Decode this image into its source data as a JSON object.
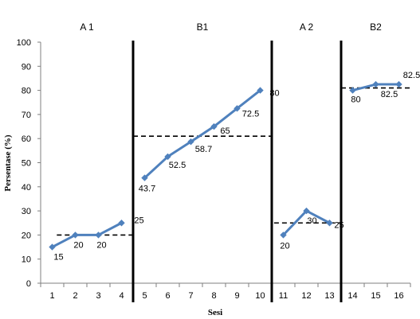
{
  "chart_data": {
    "type": "line",
    "xlabel": "Sesi",
    "ylabel": "Persentase (%)",
    "ylim": [
      0,
      100
    ],
    "yticks": [
      0,
      10,
      20,
      30,
      40,
      50,
      60,
      70,
      80,
      90,
      100
    ],
    "xlim": [
      0.5,
      16.5
    ],
    "x_ticks": [
      1,
      2,
      3,
      4,
      5,
      6,
      7,
      8,
      9,
      10,
      11,
      12,
      13,
      14,
      15,
      16
    ],
    "grid": false,
    "series_color": "#4F81BD",
    "phase_dividers": [
      4.5,
      10.5,
      13.5
    ],
    "phases": [
      {
        "label": "A 1",
        "x": [
          1,
          2,
          3,
          4
        ],
        "values": [
          15,
          20,
          20,
          25
        ],
        "data_labels": [
          "15",
          "20",
          "20",
          "25"
        ],
        "mean_line": {
          "y": 20,
          "x_start": 1.2,
          "x_end": 4.5
        }
      },
      {
        "label": "B1",
        "x": [
          5,
          6,
          7,
          8,
          9,
          10
        ],
        "values": [
          43.7,
          52.5,
          58.7,
          65,
          72.5,
          80
        ],
        "data_labels": [
          "43.7",
          "52.5",
          "58.7",
          "65",
          "72.5",
          "80"
        ],
        "mean_line": {
          "y": 61,
          "x_start": 4.5,
          "x_end": 10.5
        }
      },
      {
        "label": "A 2",
        "x": [
          11,
          12,
          13
        ],
        "values": [
          20,
          30,
          25
        ],
        "data_labels": [
          "20",
          "30",
          "25"
        ],
        "mean_line": {
          "y": 25,
          "x_start": 10.6,
          "x_end": 13.5
        }
      },
      {
        "label": "B2",
        "x": [
          14,
          15,
          16
        ],
        "values": [
          80,
          82.5,
          82.5
        ],
        "data_labels": [
          "80",
          "82.5",
          "82.5"
        ],
        "mean_line": {
          "y": 81,
          "x_start": 13.5,
          "x_end": 16.5
        }
      }
    ]
  }
}
